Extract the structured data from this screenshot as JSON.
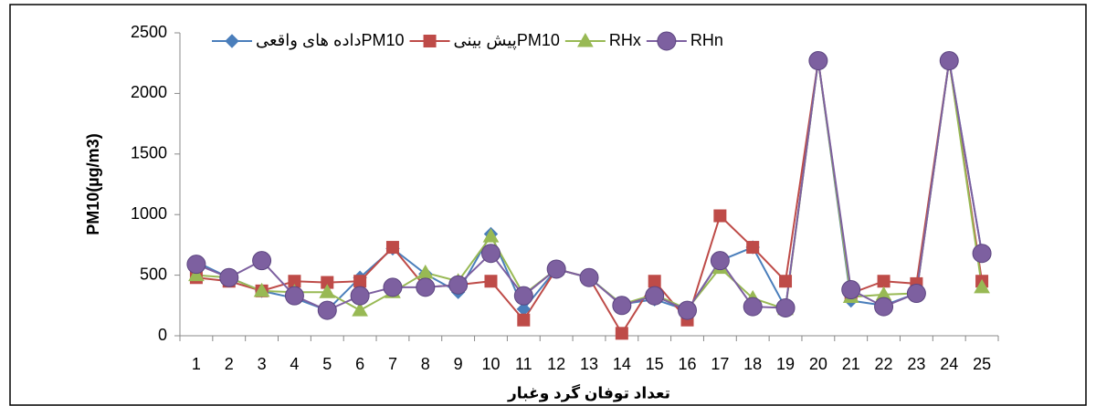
{
  "chart_data": {
    "type": "line",
    "x_label": "تعداد توفان گرد وغبار",
    "y_label": "PM10(µg/m3)",
    "categories": [
      "1",
      "2",
      "3",
      "4",
      "5",
      "6",
      "7",
      "8",
      "9",
      "10",
      "11",
      "12",
      "13",
      "14",
      "15",
      "16",
      "17",
      "18",
      "19",
      "20",
      "21",
      "22",
      "23",
      "24",
      "25"
    ],
    "series": [
      {
        "name": "داده های واقعیPM10",
        "color": "#4a7ebb",
        "marker": "diamond",
        "values": [
          610,
          480,
          370,
          310,
          210,
          480,
          720,
          510,
          360,
          840,
          220,
          550,
          480,
          260,
          300,
          210,
          620,
          730,
          230,
          2270,
          290,
          250,
          350,
          2270,
          680
        ]
      },
      {
        "name": "پیش بینیPM10",
        "color": "#be4b48",
        "marker": "square",
        "values": [
          480,
          450,
          370,
          450,
          440,
          450,
          730,
          400,
          420,
          450,
          130,
          550,
          480,
          20,
          450,
          130,
          990,
          730,
          450,
          2270,
          350,
          450,
          430,
          2270,
          450
        ]
      },
      {
        "name": "RHx",
        "color": "#98b954",
        "marker": "triangle",
        "values": [
          500,
          480,
          370,
          360,
          360,
          210,
          360,
          520,
          450,
          820,
          340,
          550,
          480,
          260,
          340,
          220,
          560,
          310,
          220,
          2270,
          320,
          340,
          350,
          2270,
          400
        ]
      },
      {
        "name": "RHn",
        "color": "#7d60a0",
        "marker": "circle",
        "values": [
          590,
          480,
          620,
          330,
          210,
          330,
          400,
          400,
          420,
          680,
          330,
          550,
          480,
          250,
          330,
          210,
          620,
          240,
          230,
          2270,
          380,
          240,
          350,
          2270,
          680
        ]
      }
    ],
    "ylim": [
      0,
      2500
    ],
    "yticks": [
      0,
      500,
      1000,
      1500,
      2000,
      2500
    ],
    "grid": false,
    "legend": "top"
  }
}
